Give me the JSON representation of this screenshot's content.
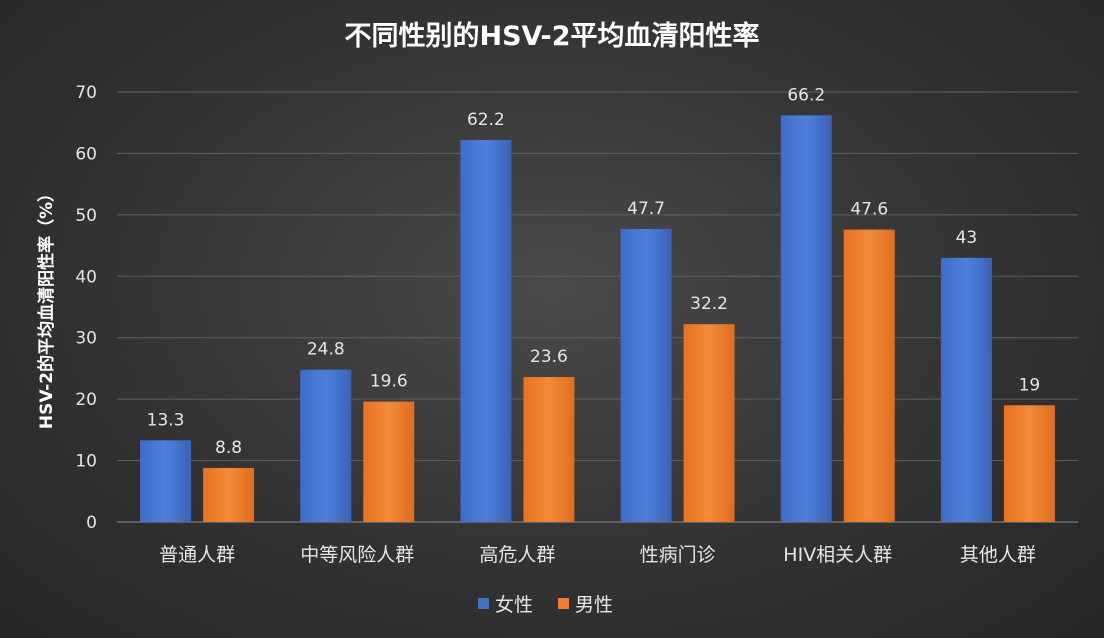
{
  "chart_data": {
    "type": "bar",
    "title": "不同性别的HSV-2平均血清阳性率",
    "xlabel": "",
    "ylabel": "HSV-2的平均血清阳性率（%）",
    "ylim": [
      0,
      70
    ],
    "yticks": [
      0,
      10,
      20,
      30,
      40,
      50,
      60,
      70
    ],
    "grid": true,
    "legend_position": "bottom",
    "categories": [
      "普通人群",
      "中等风险人群",
      "高危人群",
      "性病门诊",
      "HIV相关人群",
      "其他人群"
    ],
    "series": [
      {
        "name": "女性",
        "color": "#4472c4",
        "values": [
          13.3,
          24.8,
          62.2,
          47.7,
          66.2,
          43
        ]
      },
      {
        "name": "男性",
        "color": "#ed7d31",
        "values": [
          8.8,
          19.6,
          23.6,
          32.2,
          47.6,
          19
        ]
      }
    ]
  }
}
